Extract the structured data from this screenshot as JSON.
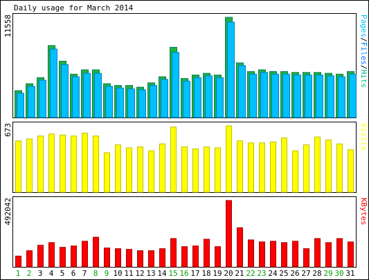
{
  "title": "Daily usage for March 2014",
  "colors": {
    "frame": "#000000",
    "grid_bg": "#ffffff",
    "hits": "#00805c",
    "hits_fill": "#20b040",
    "files": "#0080c0",
    "files_fill": "#00c0ff",
    "visits": "#c0c000",
    "visits_fill": "#ffff00",
    "kbytes": "#a00000",
    "kbytes_fill": "#ff0000",
    "weekend_label": "#00a000",
    "weekday_label": "#000000"
  },
  "chart_data": [
    {
      "type": "bar",
      "title": "Daily usage for March 2014",
      "ylabel_parts": [
        {
          "text": "Pages",
          "color": "#00c0ff"
        },
        {
          "text": "/",
          "color": "#000000"
        },
        {
          "text": "Files",
          "color": "#0080ff"
        },
        {
          "text": "/",
          "color": "#000000"
        },
        {
          "text": "Hits",
          "color": "#00c080"
        }
      ],
      "ymax_label": "11558",
      "ylim": [
        0,
        11558
      ],
      "categories": [
        "1",
        "2",
        "3",
        "4",
        "5",
        "6",
        "7",
        "8",
        "9",
        "10",
        "11",
        "12",
        "13",
        "14",
        "15",
        "16",
        "17",
        "18",
        "19",
        "20",
        "21",
        "22",
        "23",
        "24",
        "25",
        "26",
        "27",
        "28",
        "29",
        "30",
        "31"
      ],
      "weekend": [
        1,
        2,
        8,
        9,
        15,
        16,
        22,
        23,
        29,
        30
      ],
      "series": [
        {
          "name": "Hits",
          "values": [
            3100,
            3900,
            4600,
            8300,
            6500,
            5000,
            5500,
            5500,
            3900,
            3700,
            3700,
            3500,
            4000,
            4700,
            8100,
            4500,
            4900,
            5100,
            4900,
            11558,
            6300,
            5300,
            5500,
            5300,
            5300,
            5200,
            5200,
            5200,
            5100,
            5000,
            5300
          ]
        },
        {
          "name": "Files",
          "values": [
            2800,
            3600,
            4300,
            7900,
            6100,
            4700,
            5100,
            5100,
            3600,
            3400,
            3300,
            3200,
            3700,
            4400,
            7500,
            4200,
            4600,
            4800,
            4600,
            11000,
            6000,
            5000,
            5200,
            5000,
            5000,
            4900,
            4900,
            4900,
            4800,
            4700,
            5000
          ]
        }
      ]
    },
    {
      "type": "bar",
      "ylabel_parts": [
        {
          "text": "Visits",
          "color": "#ffff00"
        }
      ],
      "ymax_label": "673",
      "ylim": [
        0,
        673
      ],
      "categories": [
        "1",
        "2",
        "3",
        "4",
        "5",
        "6",
        "7",
        "8",
        "9",
        "10",
        "11",
        "12",
        "13",
        "14",
        "15",
        "16",
        "17",
        "18",
        "19",
        "20",
        "21",
        "22",
        "23",
        "24",
        "25",
        "26",
        "27",
        "28",
        "29",
        "30",
        "31"
      ],
      "series": [
        {
          "name": "Visits",
          "values": [
            520,
            540,
            570,
            590,
            580,
            570,
            600,
            570,
            400,
            480,
            450,
            460,
            420,
            490,
            660,
            460,
            440,
            460,
            450,
            673,
            520,
            500,
            500,
            510,
            550,
            420,
            480,
            560,
            530,
            490,
            430
          ]
        }
      ]
    },
    {
      "type": "bar",
      "ylabel_parts": [
        {
          "text": "KBytes",
          "color": "#ff0000"
        }
      ],
      "ymax_label": "492042",
      "ylim": [
        0,
        492042
      ],
      "categories": [
        "1",
        "2",
        "3",
        "4",
        "5",
        "6",
        "7",
        "8",
        "9",
        "10",
        "11",
        "12",
        "13",
        "14",
        "15",
        "16",
        "17",
        "18",
        "19",
        "20",
        "21",
        "22",
        "23",
        "24",
        "25",
        "26",
        "27",
        "28",
        "29",
        "30",
        "31"
      ],
      "series": [
        {
          "name": "KBytes",
          "values": [
            80000,
            120000,
            160000,
            180000,
            145000,
            155000,
            190000,
            220000,
            140000,
            135000,
            130000,
            120000,
            120000,
            135000,
            210000,
            150000,
            155000,
            205000,
            150000,
            492042,
            290000,
            200000,
            185000,
            190000,
            180000,
            190000,
            135000,
            210000,
            180000,
            210000,
            185000
          ]
        }
      ]
    }
  ]
}
